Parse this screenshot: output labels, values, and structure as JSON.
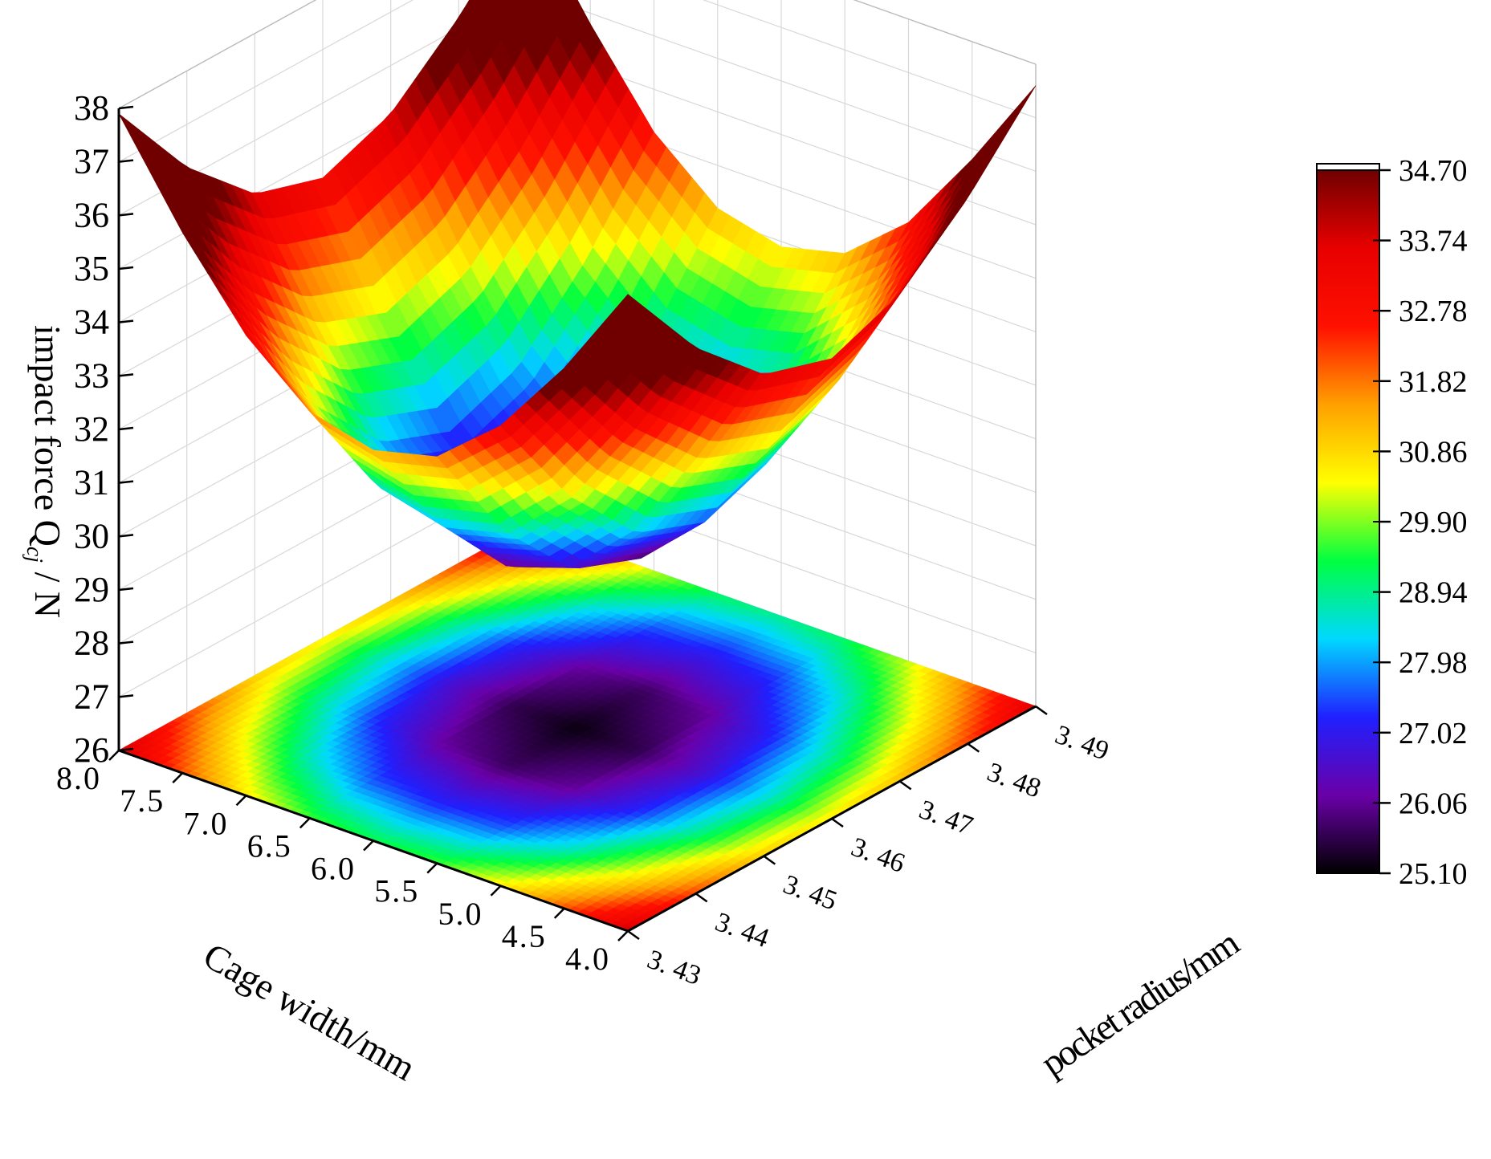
{
  "chart_data": {
    "type": "surface3d",
    "title": "",
    "xlabel": "Cage width/mm",
    "ylabel": "pocket radius/mm",
    "zlabel_main": "impact force Q",
    "zlabel_sub": "cj",
    "zlabel_unit": " / N",
    "x_ticks": [
      "8.0",
      "7.5",
      "7.0",
      "6.5",
      "6.0",
      "5.5",
      "5.0",
      "4.5",
      "4.0"
    ],
    "y_ticks": [
      "3. 43",
      "3. 44",
      "3. 45",
      "3. 46",
      "3. 47",
      "3. 48",
      "3. 49"
    ],
    "z_ticks": [
      "26",
      "27",
      "28",
      "29",
      "30",
      "31",
      "32",
      "33",
      "34",
      "35",
      "36",
      "37",
      "38"
    ],
    "xlim": [
      4.0,
      8.0
    ],
    "ylim": [
      3.43,
      3.49
    ],
    "zlim": [
      26,
      38
    ],
    "grid": true,
    "projected_contour": true,
    "colorbar": {
      "ticks": [
        "34.70",
        "33.74",
        "32.78",
        "31.82",
        "30.86",
        "29.90",
        "28.94",
        "27.98",
        "27.02",
        "26.06",
        "25.10"
      ],
      "min": 25.1,
      "max": 34.7,
      "colors": [
        "#000000",
        "#6a00a8",
        "#2020ff",
        "#00d8ff",
        "#00ff40",
        "#ffff00",
        "#ffa000",
        "#ff1000",
        "#e80000",
        "#700000"
      ]
    },
    "surface_values": {
      "note_rows": "rows = Cage width from 8.0 down to 4.0 (step 0.5), cols = pocket radius 3.43..3.49 (step 0.01)",
      "z": [
        [
          37.9,
          36.2,
          35.0,
          34.6,
          35.1,
          36.2,
          37.6
        ],
        [
          36.1,
          34.3,
          33.0,
          32.5,
          33.0,
          34.2,
          35.8
        ],
        [
          34.6,
          32.6,
          31.2,
          30.7,
          31.2,
          32.5,
          34.2
        ],
        [
          33.6,
          31.5,
          30.1,
          29.6,
          30.1,
          31.4,
          33.2
        ],
        [
          33.3,
          31.2,
          29.7,
          29.2,
          29.7,
          31.1,
          32.9
        ],
        [
          33.6,
          31.5,
          30.1,
          29.6,
          30.1,
          31.4,
          33.2
        ],
        [
          34.6,
          32.6,
          31.2,
          30.7,
          31.2,
          32.5,
          34.2
        ],
        [
          36.1,
          34.3,
          33.0,
          32.5,
          33.0,
          34.2,
          35.8
        ],
        [
          37.9,
          36.2,
          35.0,
          34.6,
          35.1,
          36.2,
          37.6
        ]
      ]
    }
  }
}
